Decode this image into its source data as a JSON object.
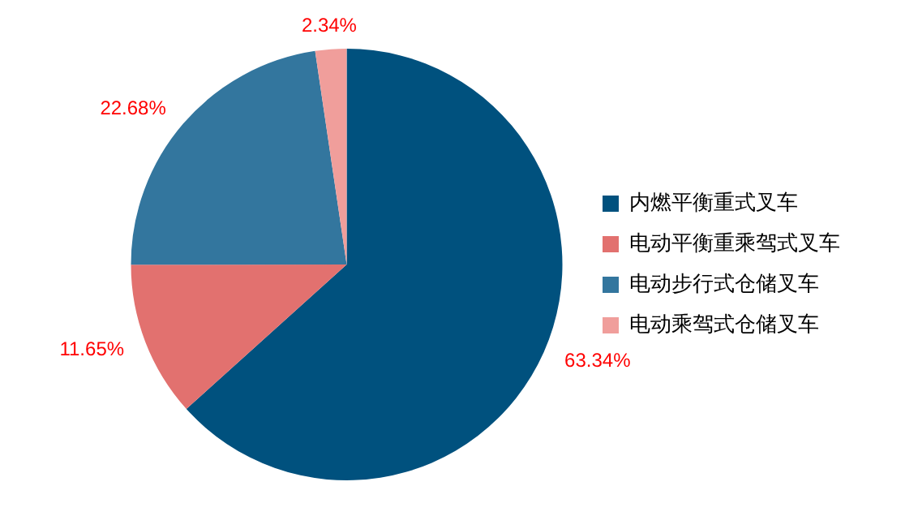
{
  "chart_data": {
    "type": "pie",
    "categories": [
      "内燃平衡重式叉车",
      "电动平衡重乘驾式叉车",
      "电动步行式仓储叉车",
      "电动乘驾式仓储叉车"
    ],
    "values": [
      63.34,
      11.65,
      22.68,
      2.34
    ],
    "colors": [
      "#00517e",
      "#e2716f",
      "#33769e",
      "#f09e9b"
    ],
    "value_labels": [
      "63.34%",
      "11.65%",
      "22.68%",
      "2.34%"
    ],
    "legend": "right"
  }
}
